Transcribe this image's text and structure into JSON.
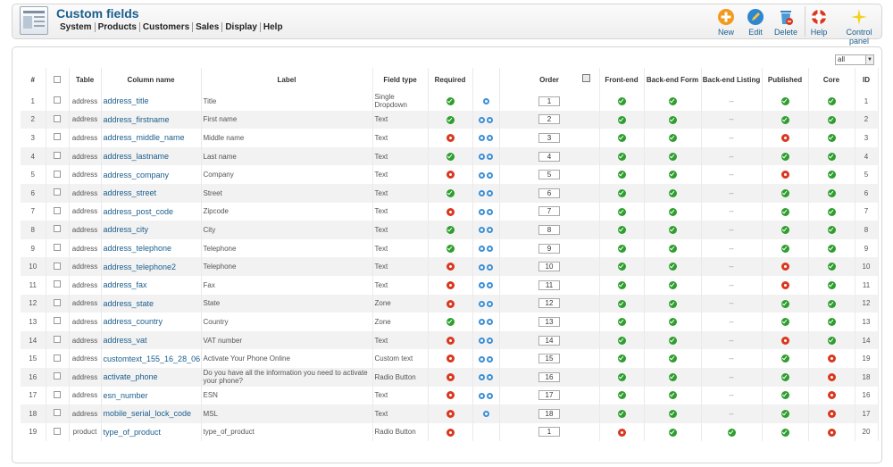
{
  "header": {
    "title": "Custom fields",
    "menu": [
      "System",
      "Products",
      "Customers",
      "Sales",
      "Display",
      "Help"
    ],
    "toolbar": [
      {
        "label": "New",
        "icon": "plus-icon"
      },
      {
        "label": "Edit",
        "icon": "pencil-icon"
      },
      {
        "label": "Delete",
        "icon": "trash-icon"
      },
      {
        "label": "Help",
        "icon": "lifebuoy-icon"
      },
      {
        "label": "Control panel",
        "icon": "sparkle-icon"
      }
    ]
  },
  "filter": {
    "value": "all"
  },
  "columns": [
    "#",
    "",
    "Table",
    "Column name",
    "Label",
    "Field type",
    "Required",
    "",
    "Order",
    "Front-end",
    "Back-end Form",
    "Back-end Listing",
    "Published",
    "Core",
    "ID"
  ],
  "rows": [
    {
      "n": "1",
      "table": "address",
      "col": "address_title",
      "label": "Title",
      "type": "Single Dropdown",
      "req": "ok",
      "up": false,
      "down": true,
      "order": "1",
      "fe": "ok",
      "bef": "ok",
      "bel": "--",
      "pub": "ok",
      "core": "ok",
      "id": "1"
    },
    {
      "n": "2",
      "table": "address",
      "col": "address_firstname",
      "label": "First name",
      "type": "Text",
      "req": "ok",
      "up": true,
      "down": true,
      "order": "2",
      "fe": "ok",
      "bef": "ok",
      "bel": "--",
      "pub": "ok",
      "core": "ok",
      "id": "2"
    },
    {
      "n": "3",
      "table": "address",
      "col": "address_middle_name",
      "label": "Middle name",
      "type": "Text",
      "req": "no",
      "up": true,
      "down": true,
      "order": "3",
      "fe": "ok",
      "bef": "ok",
      "bel": "--",
      "pub": "no",
      "core": "ok",
      "id": "3"
    },
    {
      "n": "4",
      "table": "address",
      "col": "address_lastname",
      "label": "Last name",
      "type": "Text",
      "req": "ok",
      "up": true,
      "down": true,
      "order": "4",
      "fe": "ok",
      "bef": "ok",
      "bel": "--",
      "pub": "ok",
      "core": "ok",
      "id": "4"
    },
    {
      "n": "5",
      "table": "address",
      "col": "address_company",
      "label": "Company",
      "type": "Text",
      "req": "no",
      "up": true,
      "down": true,
      "order": "5",
      "fe": "ok",
      "bef": "ok",
      "bel": "--",
      "pub": "no",
      "core": "ok",
      "id": "5"
    },
    {
      "n": "6",
      "table": "address",
      "col": "address_street",
      "label": "Street",
      "type": "Text",
      "req": "ok",
      "up": true,
      "down": true,
      "order": "6",
      "fe": "ok",
      "bef": "ok",
      "bel": "--",
      "pub": "ok",
      "core": "ok",
      "id": "6"
    },
    {
      "n": "7",
      "table": "address",
      "col": "address_post_code",
      "label": "Zipcode",
      "type": "Text",
      "req": "no",
      "up": true,
      "down": true,
      "order": "7",
      "fe": "ok",
      "bef": "ok",
      "bel": "--",
      "pub": "ok",
      "core": "ok",
      "id": "7"
    },
    {
      "n": "8",
      "table": "address",
      "col": "address_city",
      "label": "City",
      "type": "Text",
      "req": "ok",
      "up": true,
      "down": true,
      "order": "8",
      "fe": "ok",
      "bef": "ok",
      "bel": "--",
      "pub": "ok",
      "core": "ok",
      "id": "8"
    },
    {
      "n": "9",
      "table": "address",
      "col": "address_telephone",
      "label": "Telephone",
      "type": "Text",
      "req": "ok",
      "up": true,
      "down": true,
      "order": "9",
      "fe": "ok",
      "bef": "ok",
      "bel": "--",
      "pub": "ok",
      "core": "ok",
      "id": "9"
    },
    {
      "n": "10",
      "table": "address",
      "col": "address_telephone2",
      "label": "Telephone",
      "type": "Text",
      "req": "no",
      "up": true,
      "down": true,
      "order": "10",
      "fe": "ok",
      "bef": "ok",
      "bel": "--",
      "pub": "no",
      "core": "ok",
      "id": "10"
    },
    {
      "n": "11",
      "table": "address",
      "col": "address_fax",
      "label": "Fax",
      "type": "Text",
      "req": "no",
      "up": true,
      "down": true,
      "order": "11",
      "fe": "ok",
      "bef": "ok",
      "bel": "--",
      "pub": "no",
      "core": "ok",
      "id": "11"
    },
    {
      "n": "12",
      "table": "address",
      "col": "address_state",
      "label": "State",
      "type": "Zone",
      "req": "no",
      "up": true,
      "down": true,
      "order": "12",
      "fe": "ok",
      "bef": "ok",
      "bel": "--",
      "pub": "ok",
      "core": "ok",
      "id": "12"
    },
    {
      "n": "13",
      "table": "address",
      "col": "address_country",
      "label": "Country",
      "type": "Zone",
      "req": "ok",
      "up": true,
      "down": true,
      "order": "13",
      "fe": "ok",
      "bef": "ok",
      "bel": "--",
      "pub": "ok",
      "core": "ok",
      "id": "13"
    },
    {
      "n": "14",
      "table": "address",
      "col": "address_vat",
      "label": "VAT number",
      "type": "Text",
      "req": "no",
      "up": true,
      "down": true,
      "order": "14",
      "fe": "ok",
      "bef": "ok",
      "bel": "--",
      "pub": "no",
      "core": "ok",
      "id": "14"
    },
    {
      "n": "15",
      "table": "address",
      "col": "customtext_155_16_28_06",
      "label": "Activate Your Phone Online",
      "type": "Custom text",
      "req": "no",
      "up": true,
      "down": true,
      "order": "15",
      "fe": "ok",
      "bef": "ok",
      "bel": "--",
      "pub": "ok",
      "core": "no",
      "id": "19"
    },
    {
      "n": "16",
      "table": "address",
      "col": "activate_phone",
      "label": "Do you have all the information you need to activate your phone?",
      "type": "Radio Button",
      "req": "no",
      "up": true,
      "down": true,
      "order": "16",
      "fe": "ok",
      "bef": "ok",
      "bel": "--",
      "pub": "ok",
      "core": "no",
      "id": "18"
    },
    {
      "n": "17",
      "table": "address",
      "col": "esn_number",
      "label": "ESN",
      "type": "Text",
      "req": "no",
      "up": true,
      "down": true,
      "order": "17",
      "fe": "ok",
      "bef": "ok",
      "bel": "--",
      "pub": "ok",
      "core": "no",
      "id": "16"
    },
    {
      "n": "18",
      "table": "address",
      "col": "mobile_serial_lock_code",
      "label": "MSL",
      "type": "Text",
      "req": "no",
      "up": true,
      "down": false,
      "order": "18",
      "fe": "ok",
      "bef": "ok",
      "bel": "--",
      "pub": "ok",
      "core": "no",
      "id": "17"
    },
    {
      "n": "19",
      "table": "product",
      "col": "type_of_product",
      "label": "type_of_product",
      "type": "Radio Button",
      "req": "no",
      "up": false,
      "down": false,
      "order": "1",
      "fe": "no",
      "bef": "ok",
      "bel": "ok",
      "pub": "ok",
      "core": "no",
      "id": "20"
    }
  ]
}
